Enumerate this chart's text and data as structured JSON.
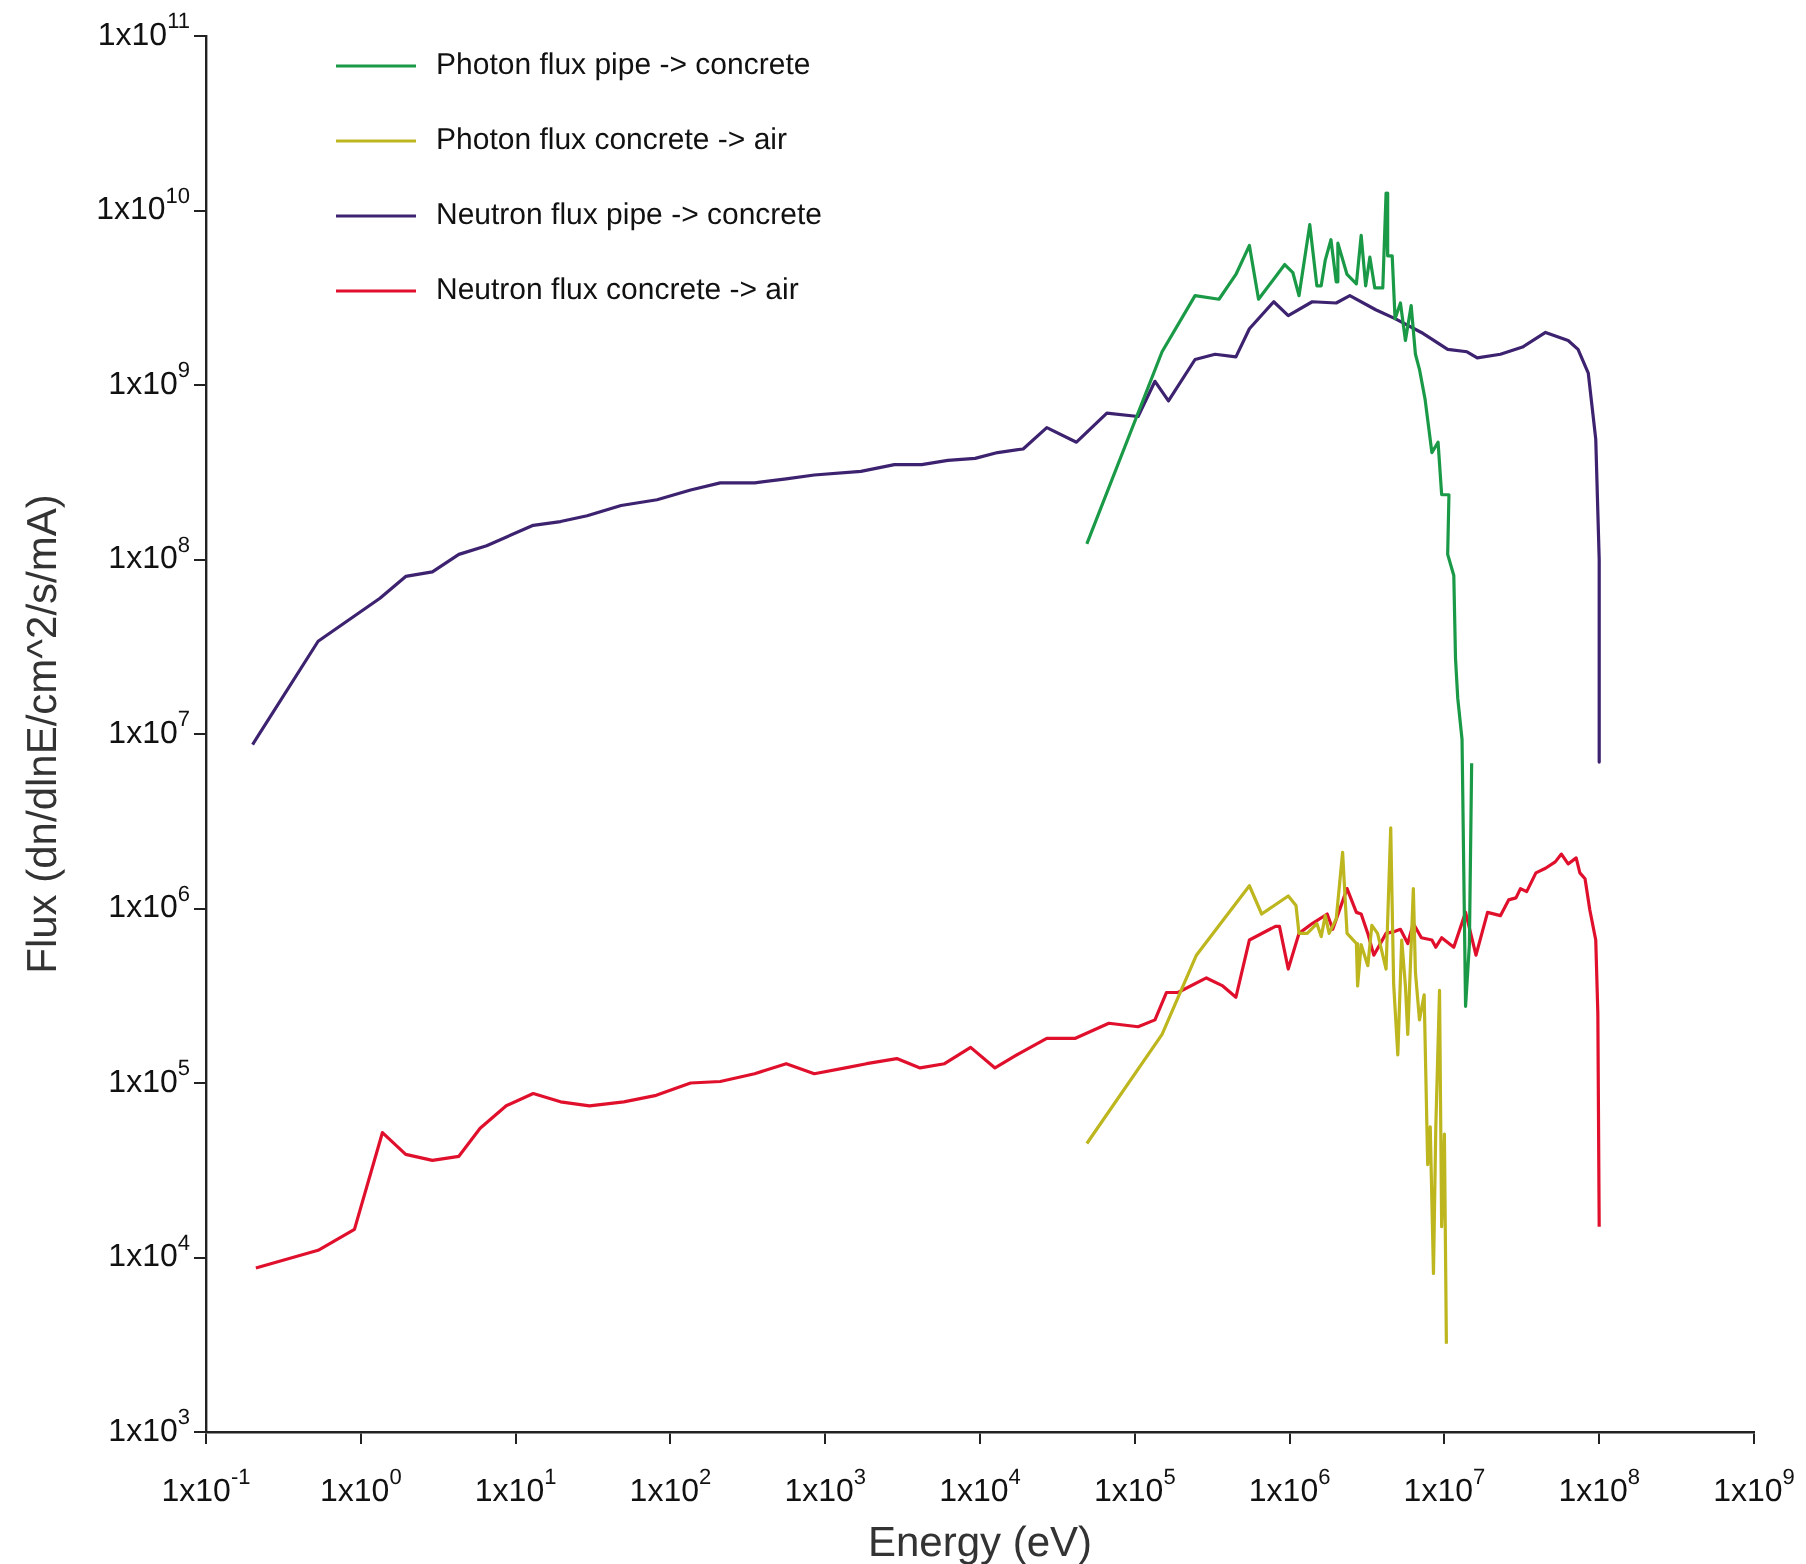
{
  "chart_data": {
    "type": "line",
    "xlabel": "Energy (eV)",
    "ylabel": "Flux (dn/dlnE/cm^2/s/mA)",
    "log": "xy",
    "grid": false,
    "legend": "top left",
    "marker": "none",
    "line_style": "solid",
    "xlim": [
      0.1,
      1000000000.0
    ],
    "ylim": [
      1000,
      100000000000.0
    ],
    "xticks": [
      {
        "value": 0.1,
        "label": "1x10$^{-1}$"
      },
      {
        "value": 1,
        "label": "1x10$^{0}$"
      },
      {
        "value": 10,
        "label": "1x10$^{1}$"
      },
      {
        "value": 100,
        "label": "1x10$^{2}$"
      },
      {
        "value": 1000,
        "label": "1x10$^{3}$"
      },
      {
        "value": 10000,
        "label": "1x10$^{4}$"
      },
      {
        "value": 100000,
        "label": "1x10$^{5}$"
      },
      {
        "value": 1000000,
        "label": "1x10$^{6}$"
      },
      {
        "value": 10000000,
        "label": "1x10$^{7}$"
      },
      {
        "value": 100000000,
        "label": "1x10$^{8}$"
      },
      {
        "value": 1000000000,
        "label": "1x10$^{9}$"
      }
    ],
    "yticks": [
      {
        "value": 1000,
        "label": "1x10$^{3}$"
      },
      {
        "value": 10000,
        "label": "1x10$^{4}$"
      },
      {
        "value": 100000,
        "label": "1x10$^{5}$"
      },
      {
        "value": 1000000,
        "label": "1x10$^{6}$"
      },
      {
        "value": 10000000,
        "label": "1x10$^{7}$"
      },
      {
        "value": 100000000,
        "label": "1x10$^{8}$"
      },
      {
        "value": 1000000000,
        "label": "1x10$^{9}$"
      },
      {
        "value": 10000000000,
        "label": "1x10$^{10}$"
      },
      {
        "value": 100000000000,
        "label": "1x10$^{11}$"
      }
    ],
    "series": [
      {
        "name": "Photon flux pipe -> concrete",
        "color": "#1a9a47",
        "x": [
          49000.0,
          150000.0,
          245000.0,
          350000.0,
          450000.0,
          550000.0,
          630000.0,
          930000.0,
          1050000.0,
          1150000.0,
          1350000.0,
          1500000.0,
          1600000.0,
          1700000.0,
          1850000.0,
          2000000.0,
          2050000.0,
          2350000.0,
          2700000.0,
          2900000.0,
          3100000.0,
          3300000.0,
          3550000.0,
          4000000.0,
          4200000.0,
          4300000.0,
          4600000.0,
          4800000.0,
          5200000.0,
          5600000.0,
          6100000.0,
          6500000.0,
          6900000.0,
          7500000.0,
          8300000.0,
          9100000.0,
          9600000.0,
          10700000.0,
          10500000.0,
          11500000.0,
          11800000.0,
          12200000.0,
          13000000.0,
          13700000.0,
          14500000.0,
          15000000.0
        ],
        "values": [
          123000000.0,
          1550000000.0,
          3250000000.0,
          3100000000.0,
          4300000000.0,
          6300000000.0,
          3100000000.0,
          4900000000.0,
          4400000000.0,
          3250000000.0,
          8300000000.0,
          3700000000.0,
          3700000000.0,
          5200000000.0,
          6800000000.0,
          3900000000.0,
          6500000000.0,
          4300000000.0,
          3800000000.0,
          7200000000.0,
          3700000000.0,
          5400000000.0,
          3600000000.0,
          3600000000.0,
          12600000000.0,
          5500000000.0,
          5500000000.0,
          2400000000.0,
          2950000000.0,
          1800000000.0,
          2850000000.0,
          1500000000.0,
          1230000000.0,
          830000000.0,
          410000000.0,
          470000000.0,
          235000000.0,
          235000000.0,
          107000000.0,
          81000000.0,
          27000000.0,
          16000000.0,
          9300000.0,
          275000.0,
          620000.0,
          6800000.0
        ]
      },
      {
        "name": "Photon flux concrete -> air",
        "color": "#bdb61e",
        "x": [
          49000.0,
          150000.0,
          250000.0,
          350000.0,
          550000.0,
          660000.0,
          980000.0,
          1100000.0,
          1150000.0,
          1300000.0,
          1500000.0,
          1600000.0,
          1700000.0,
          1800000.0,
          2000000.0,
          2200000.0,
          2350000.0,
          2700000.0,
          2750000.0,
          2900000.0,
          3200000.0,
          3400000.0,
          3700000.0,
          4200000.0,
          4500000.0,
          4700000.0,
          5000000.0,
          5300000.0,
          5600000.0,
          5800000.0,
          6300000.0,
          6500000.0,
          6900000.0,
          7400000.0,
          7800000.0,
          8100000.0,
          8500000.0,
          8800000.0,
          9300000.0,
          9600000.0,
          10000000.0,
          10300000.0
        ],
        "values": [
          45000.0,
          190000.0,
          540000.0,
          800000.0,
          1350000.0,
          930000.0,
          1180000.0,
          1040000.0,
          720000.0,
          720000.0,
          820000.0,
          690000.0,
          910000.0,
          720000.0,
          870000.0,
          2100000.0,
          720000.0,
          630000.0,
          360000.0,
          620000.0,
          470000.0,
          800000.0,
          720000.0,
          450000.0,
          2900000.0,
          370000.0,
          145000.0,
          660000.0,
          360000.0,
          190000.0,
          1300000.0,
          430000.0,
          230000.0,
          320000.0,
          34000.0,
          56000.0,
          8100.0,
          56000.0,
          340000.0,
          15000.0,
          51000.0,
          3200.0
        ]
      },
      {
        "name": "Neutron flux pipe -> concrete",
        "color": "#3d2270",
        "x": [
          0.2,
          0.53,
          1.33,
          1.95,
          2.9,
          4.3,
          6.5,
          13,
          19.5,
          29,
          48,
          82,
          135,
          210,
          350,
          560,
          850,
          1700,
          2800,
          4200,
          6200,
          9300,
          13000,
          19000,
          27000,
          42000,
          66000,
          105000.0,
          135000.0,
          165000.0,
          245000.0,
          330000.0,
          450000.0,
          550000.0,
          790000.0,
          980000.0,
          1400000.0,
          2000000.0,
          2450000.0,
          3600000.0,
          4800000.0,
          7100000.0,
          10500000.0,
          14000000.0,
          16300000.0,
          23000000.0,
          32000000.0,
          45000000.0,
          63000000.0,
          73000000.0,
          85000000.0,
          95000000.0,
          100000000.0,
          100000000.0
        ],
        "values": [
          8700000.0,
          34000000.0,
          60000000.0,
          80000000.0,
          85000000.0,
          107000000.0,
          120000000.0,
          157000000.0,
          165000000.0,
          178000000.0,
          204000000.0,
          220000000.0,
          250000000.0,
          275000000.0,
          275000000.0,
          290000000.0,
          305000000.0,
          320000000.0,
          350000000.0,
          350000000.0,
          370000000.0,
          380000000.0,
          410000000.0,
          430000000.0,
          570000000.0,
          470000000.0,
          690000000.0,
          660000000.0,
          1050000000.0,
          810000000.0,
          1400000000.0,
          1500000000.0,
          1450000000.0,
          2100000000.0,
          3000000000.0,
          2500000000.0,
          3000000000.0,
          2950000000.0,
          3250000000.0,
          2700000000.0,
          2400000000.0,
          2000000000.0,
          1600000000.0,
          1550000000.0,
          1430000000.0,
          1500000000.0,
          1650000000.0,
          2000000000.0,
          1800000000.0,
          1600000000.0,
          1170000000.0,
          490000000.0,
          100000000.0,
          6900000.0
        ]
      },
      {
        "name": "Neutron flux concrete -> air",
        "color": "#e0102d",
        "x": [
          0.21,
          0.53,
          0.91,
          1.38,
          1.95,
          2.9,
          4.3,
          5.9,
          8.7,
          13,
          19.5,
          30,
          50,
          81,
          135,
          210,
          350,
          560,
          850,
          1350,
          1850,
          2900,
          4100,
          5900,
          8700,
          12500,
          18000,
          27000,
          41000,
          68000,
          105000.0,
          135000.0,
          160000.0,
          190000.0,
          290000.0,
          370000.0,
          450000.0,
          550000.0,
          810000.0,
          860000.0,
          980000.0,
          1150000.0,
          1400000.0,
          1750000.0,
          1900000.0,
          2350000.0,
          2700000.0,
          2900000.0,
          3200000.0,
          3500000.0,
          4200000.0,
          4800000.0,
          5200000.0,
          5800000.0,
          6300000.0,
          7100000.0,
          8300000.0,
          8800000.0,
          9600000.0,
          11500000.0,
          13700000.0,
          16000000.0,
          19000000.0,
          23000000.0,
          26000000.0,
          29000000.0,
          31000000.0,
          34000000.0,
          39000000.0,
          45000000.0,
          52000000.0,
          57000000.0,
          63000000.0,
          71000000.0,
          75000000.0,
          81000000.0,
          87000000.0,
          95000000.0,
          98000000.0,
          100000000.0
        ],
        "values": [
          8700.0,
          11000.0,
          14500.0,
          52000.0,
          39000.0,
          36000.0,
          38000.0,
          55000.0,
          74000.0,
          87000.0,
          78000.0,
          74000.0,
          78000.0,
          85000.0,
          100000.0,
          102000.0,
          113000.0,
          129000.0,
          113000.0,
          122000.0,
          129000.0,
          138000.0,
          122000.0,
          129000.0,
          160000.0,
          122000.0,
          148000.0,
          180000.0,
          180000.0,
          220000.0,
          210000.0,
          230000.0,
          330000.0,
          330000.0,
          400000.0,
          360000.0,
          310000.0,
          660000.0,
          790000.0,
          790000.0,
          450000.0,
          720000.0,
          820000.0,
          930000.0,
          760000.0,
          1300000.0,
          950000.0,
          930000.0,
          720000.0,
          540000.0,
          720000.0,
          740000.0,
          760000.0,
          630000.0,
          820000.0,
          680000.0,
          660000.0,
          600000.0,
          680000.0,
          600000.0,
          950000.0,
          540000.0,
          950000.0,
          910000.0,
          1120000.0,
          1150000.0,
          1300000.0,
          1250000.0,
          1600000.0,
          1700000.0,
          1850000.0,
          2050000.0,
          1800000.0,
          1950000.0,
          1600000.0,
          1480000.0,
          980000.0,
          660000.0,
          250000.0,
          15000.0
        ]
      }
    ]
  }
}
